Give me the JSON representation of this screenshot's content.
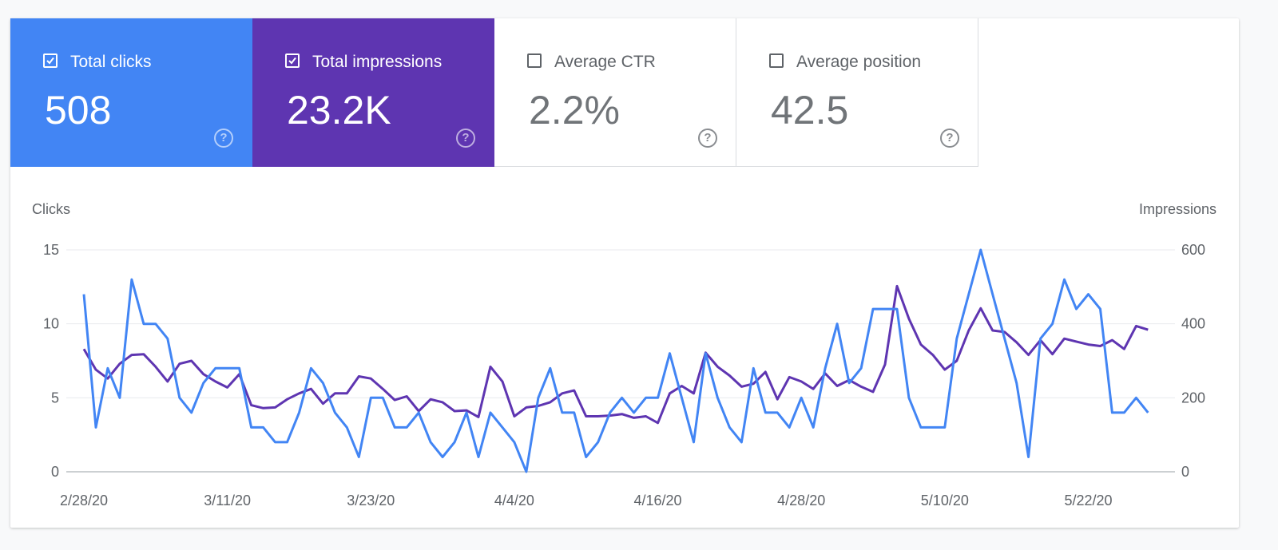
{
  "metrics": [
    {
      "label": "Total clicks",
      "value": "508",
      "checked": true,
      "color": "#4285f4",
      "help_icon": "help-circle-icon"
    },
    {
      "label": "Total impressions",
      "value": "23.2K",
      "checked": true,
      "color": "#5e35b1",
      "help_icon": "help-circle-icon"
    },
    {
      "label": "Average CTR",
      "value": "2.2%",
      "checked": false,
      "color": "#ffffff",
      "help_icon": "help-circle-icon"
    },
    {
      "label": "Average position",
      "value": "42.5",
      "checked": false,
      "color": "#ffffff",
      "help_icon": "help-circle-icon"
    }
  ],
  "chart_data": {
    "type": "line",
    "grid": true,
    "x_tick_labels": [
      "2/28/20",
      "3/11/20",
      "3/23/20",
      "4/4/20",
      "4/16/20",
      "4/28/20",
      "5/10/20",
      "5/22/20"
    ],
    "x_tick_indices": [
      0,
      12,
      24,
      36,
      48,
      60,
      72,
      84
    ],
    "y_left": {
      "label": "Clicks",
      "ticks": [
        0,
        5,
        10,
        15
      ],
      "ylim": [
        0,
        15
      ]
    },
    "y_right": {
      "label": "Impressions",
      "ticks": [
        0,
        200,
        400,
        600
      ],
      "ylim": [
        0,
        600
      ]
    },
    "series": [
      {
        "name": "Clicks",
        "axis": "left",
        "color": "#4285f4",
        "values": [
          12,
          3,
          7,
          5,
          13,
          10,
          10,
          9,
          5,
          4,
          6,
          7,
          7,
          7,
          3,
          3,
          2,
          2,
          4,
          7,
          6,
          4,
          3,
          1,
          5,
          5,
          3,
          3,
          4,
          2,
          1,
          2,
          4,
          1,
          4,
          3,
          2,
          0,
          5,
          7,
          4,
          4,
          1,
          2,
          4,
          5,
          4,
          5,
          5,
          8,
          5,
          2,
          8,
          5,
          3,
          2,
          7,
          4,
          4,
          3,
          5,
          3,
          7,
          10,
          6,
          7,
          11,
          11,
          11,
          5,
          3,
          3,
          3,
          9,
          12,
          15,
          12,
          9,
          6,
          1,
          9,
          10,
          13,
          11,
          12,
          11,
          4,
          4,
          5,
          4
        ]
      },
      {
        "name": "Impressions",
        "axis": "right",
        "color": "#5e35b1",
        "values": [
          332,
          276,
          252,
          292,
          316,
          318,
          284,
          244,
          292,
          300,
          264,
          244,
          228,
          264,
          180,
          172,
          174,
          196,
          212,
          224,
          184,
          212,
          212,
          258,
          252,
          224,
          194,
          204,
          164,
          196,
          188,
          164,
          166,
          148,
          284,
          244,
          150,
          174,
          178,
          188,
          212,
          220,
          150,
          150,
          152,
          156,
          146,
          150,
          132,
          212,
          232,
          212,
          322,
          284,
          260,
          230,
          238,
          270,
          196,
          256,
          244,
          224,
          266,
          232,
          248,
          230,
          216,
          290,
          502,
          414,
          344,
          316,
          276,
          300,
          382,
          442,
          382,
          378,
          350,
          316,
          356,
          318,
          360,
          352,
          344,
          340,
          356,
          332,
          394,
          384
        ]
      }
    ]
  }
}
